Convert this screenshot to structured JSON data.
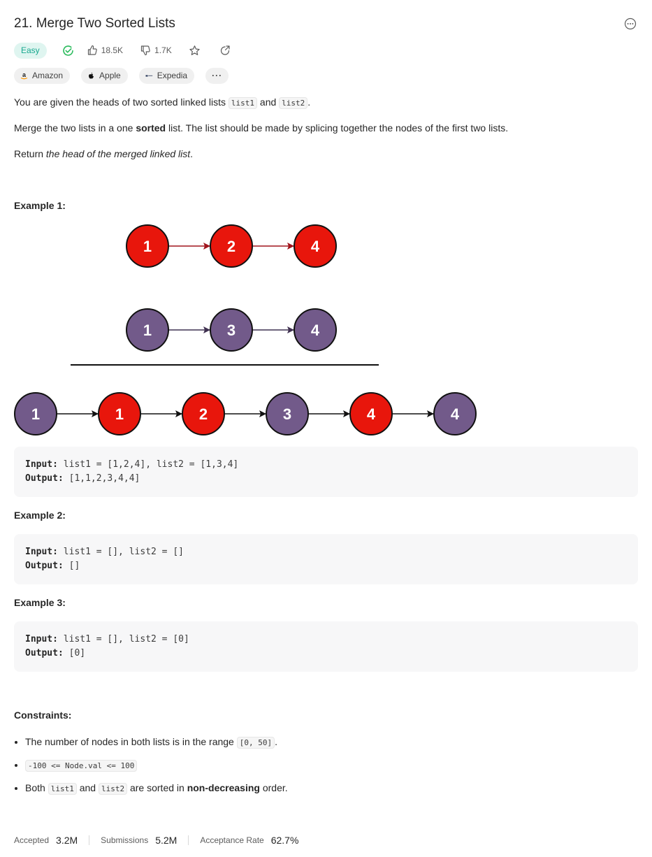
{
  "problem": {
    "title": "21. Merge Two Sorted Lists",
    "difficulty": "Easy",
    "likes": "18.5K",
    "dislikes": "1.7K"
  },
  "tags": [
    {
      "label": "Amazon",
      "icon": "amazon-logo-icon"
    },
    {
      "label": "Apple",
      "icon": "apple-logo-icon"
    },
    {
      "label": "Expedia",
      "icon": "expedia-logo-icon"
    }
  ],
  "more_tags": "···",
  "description": {
    "p1_a": "You are given the heads of two sorted linked lists ",
    "p1_code1": "list1",
    "p1_b": " and ",
    "p1_code2": "list2",
    "p1_c": ".",
    "p2_a": "Merge the two lists in a one ",
    "p2_bold": "sorted",
    "p2_b": " list. The list should be made by splicing together the nodes of the first two lists.",
    "p3_a": "Return ",
    "p3_ital": "the head of the merged linked list",
    "p3_b": "."
  },
  "examples": [
    {
      "title": "Example 1:",
      "input_label": "Input:",
      "input": " list1 = [1,2,4], list2 = [1,3,4]",
      "output_label": "Output:",
      "output": " [1,1,2,3,4,4]"
    },
    {
      "title": "Example 2:",
      "input_label": "Input:",
      "input": " list1 = [], list2 = []",
      "output_label": "Output:",
      "output": " []"
    },
    {
      "title": "Example 3:",
      "input_label": "Input:",
      "input": " list1 = [], list2 = [0]",
      "output_label": "Output:",
      "output": " [0]"
    }
  ],
  "diagram": {
    "list1": [
      "1",
      "2",
      "4"
    ],
    "list2": [
      "1",
      "3",
      "4"
    ],
    "merged": [
      {
        "v": "1",
        "from": "list2"
      },
      {
        "v": "1",
        "from": "list1"
      },
      {
        "v": "2",
        "from": "list1"
      },
      {
        "v": "3",
        "from": "list2"
      },
      {
        "v": "4",
        "from": "list1"
      },
      {
        "v": "4",
        "from": "list2"
      }
    ],
    "colors": {
      "list1": "#e8160c",
      "list2": "#725a8a",
      "arrow1": "#a0141c",
      "arrow2": "#3f3050"
    }
  },
  "constraints": {
    "title": "Constraints:",
    "c1_a": "The number of nodes in both lists is in the range ",
    "c1_code": "[0, 50]",
    "c1_b": ".",
    "c2_code": "-100 <= Node.val <= 100",
    "c3_a": "Both ",
    "c3_code1": "list1",
    "c3_b": " and ",
    "c3_code2": "list2",
    "c3_c": " are sorted in ",
    "c3_bold": "non-decreasing",
    "c3_d": " order."
  },
  "stats": {
    "accepted_label": "Accepted",
    "accepted": "3.2M",
    "submissions_label": "Submissions",
    "submissions": "5.2M",
    "rate_label": "Acceptance Rate",
    "rate": "62.7%"
  }
}
